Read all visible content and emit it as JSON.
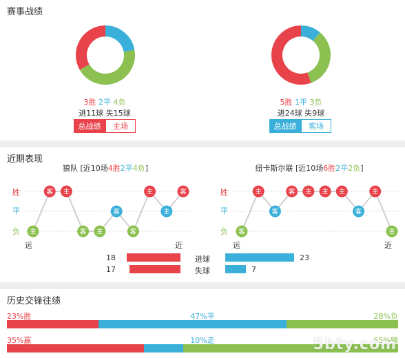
{
  "colors": {
    "win": "#e8434b",
    "draw": "#3aafd9",
    "loss": "#8cc152",
    "grid": "#d8d8d8",
    "bar_gray": "#666666"
  },
  "season": {
    "title": "赛事战绩",
    "left": {
      "win": "3胜",
      "draw": "2平",
      "loss": "4负",
      "goals_for": "进11球",
      "goals_against": "失15球",
      "btn_total": "总战绩",
      "btn_venue": "主场",
      "theme": "red",
      "donut": {
        "win": 3,
        "draw": 2,
        "loss": 4
      }
    },
    "right": {
      "win": "5胜",
      "draw": "1平",
      "loss": "3负",
      "goals_for": "进24球",
      "goals_against": "失9球",
      "btn_total": "总战绩",
      "btn_venue": "客场",
      "theme": "blue",
      "donut": {
        "win": 5,
        "draw": 1,
        "loss": 3
      }
    }
  },
  "recent": {
    "title": "近期表现",
    "axis": {
      "win": "胜",
      "draw": "平",
      "loss": "负",
      "far": "远",
      "near": "近"
    },
    "left": {
      "team_label": "狼队 [近10场",
      "w": "4胜",
      "d": "2平",
      "l": "4负",
      "close": "]",
      "matches": [
        {
          "r": "L",
          "v": "主"
        },
        {
          "r": "W",
          "v": "客"
        },
        {
          "r": "W",
          "v": "主"
        },
        {
          "r": "L",
          "v": "客"
        },
        {
          "r": "L",
          "v": "主"
        },
        {
          "r": "D",
          "v": "客"
        },
        {
          "r": "L",
          "v": "客"
        },
        {
          "r": "W",
          "v": "主"
        },
        {
          "r": "D",
          "v": "主"
        },
        {
          "r": "W",
          "v": "客"
        }
      ]
    },
    "right": {
      "team_label": "纽卡斯尔联 [近10场",
      "w": "6胜",
      "d": "2平",
      "l": "2负",
      "close": "]",
      "matches": [
        {
          "r": "L",
          "v": "客"
        },
        {
          "r": "W",
          "v": "主"
        },
        {
          "r": "D",
          "v": "客"
        },
        {
          "r": "W",
          "v": "客"
        },
        {
          "r": "W",
          "v": "主"
        },
        {
          "r": "W",
          "v": "主"
        },
        {
          "r": "W",
          "v": "主"
        },
        {
          "r": "D",
          "v": "客"
        },
        {
          "r": "W",
          "v": "主"
        },
        {
          "r": "L",
          "v": "主"
        }
      ]
    },
    "goals": {
      "for_label": "进球",
      "against_label": "失球",
      "left_for": 18,
      "left_against": 17,
      "right_for": 23,
      "right_against": 7
    }
  },
  "history": {
    "title": "历史交锋往绩",
    "row1": {
      "a": "23%胜",
      "b": "47%平",
      "c": "28%负",
      "a_pct": 23,
      "b_pct": 47,
      "c_pct": 28
    },
    "row2": {
      "a": "35%赢",
      "b": "10%走",
      "c": "55%输",
      "a_pct": 35,
      "b_pct": 10,
      "c_pct": 55
    }
  },
  "watermark": "5bty.com"
}
